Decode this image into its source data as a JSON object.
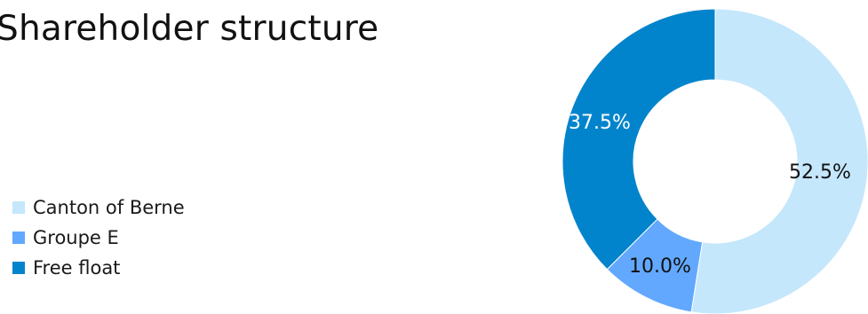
{
  "chart_data": {
    "type": "pie",
    "variant": "donut",
    "title": "Shareholder structure",
    "legend_position": "left",
    "slices": [
      {
        "label": "Canton of Berne",
        "value": 52.5,
        "display": "52.5%",
        "color": "#c4e7fb",
        "label_color": "#111111"
      },
      {
        "label": "Groupe E",
        "value": 10.0,
        "display": "10.0%",
        "color": "#62a8ff",
        "label_color": "#111111"
      },
      {
        "label": "Free float",
        "value": 37.5,
        "display": "37.5%",
        "color": "#0284cc",
        "label_color": "#ffffff"
      }
    ]
  }
}
